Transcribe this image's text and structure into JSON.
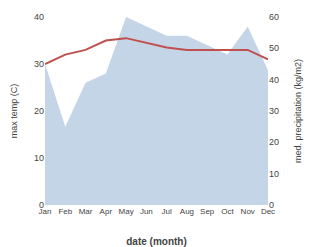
{
  "chart_data": {
    "type": "line",
    "xlabel": "date (month)",
    "ylabel": "max temp (C)",
    "y2label": "med. precipitation (kg/m2)",
    "categories": [
      "Jan",
      "Feb",
      "Mar",
      "Apr",
      "May",
      "Jun",
      "Jul",
      "Aug",
      "Sep",
      "Oct",
      "Nov",
      "Dec"
    ],
    "series": [
      {
        "type": "area",
        "axis": "y2",
        "color": "#c5d5e8",
        "values": [
          45,
          25,
          39,
          42,
          60,
          57,
          54,
          54,
          51,
          48,
          57,
          43
        ]
      },
      {
        "type": "line",
        "color": "#c0504d",
        "values": [
          30.0,
          32.0,
          33.0,
          35.0,
          35.5,
          34.5,
          33.5,
          33.0,
          33.0,
          33.0,
          33.0,
          31.0
        ]
      }
    ],
    "ylim": [
      0,
      40
    ],
    "yticks": [
      0,
      10,
      20,
      30,
      40
    ],
    "y2lim": [
      0,
      60
    ],
    "y2ticks": [
      0,
      10,
      20,
      30,
      40,
      50,
      60
    ],
    "grid": false
  }
}
